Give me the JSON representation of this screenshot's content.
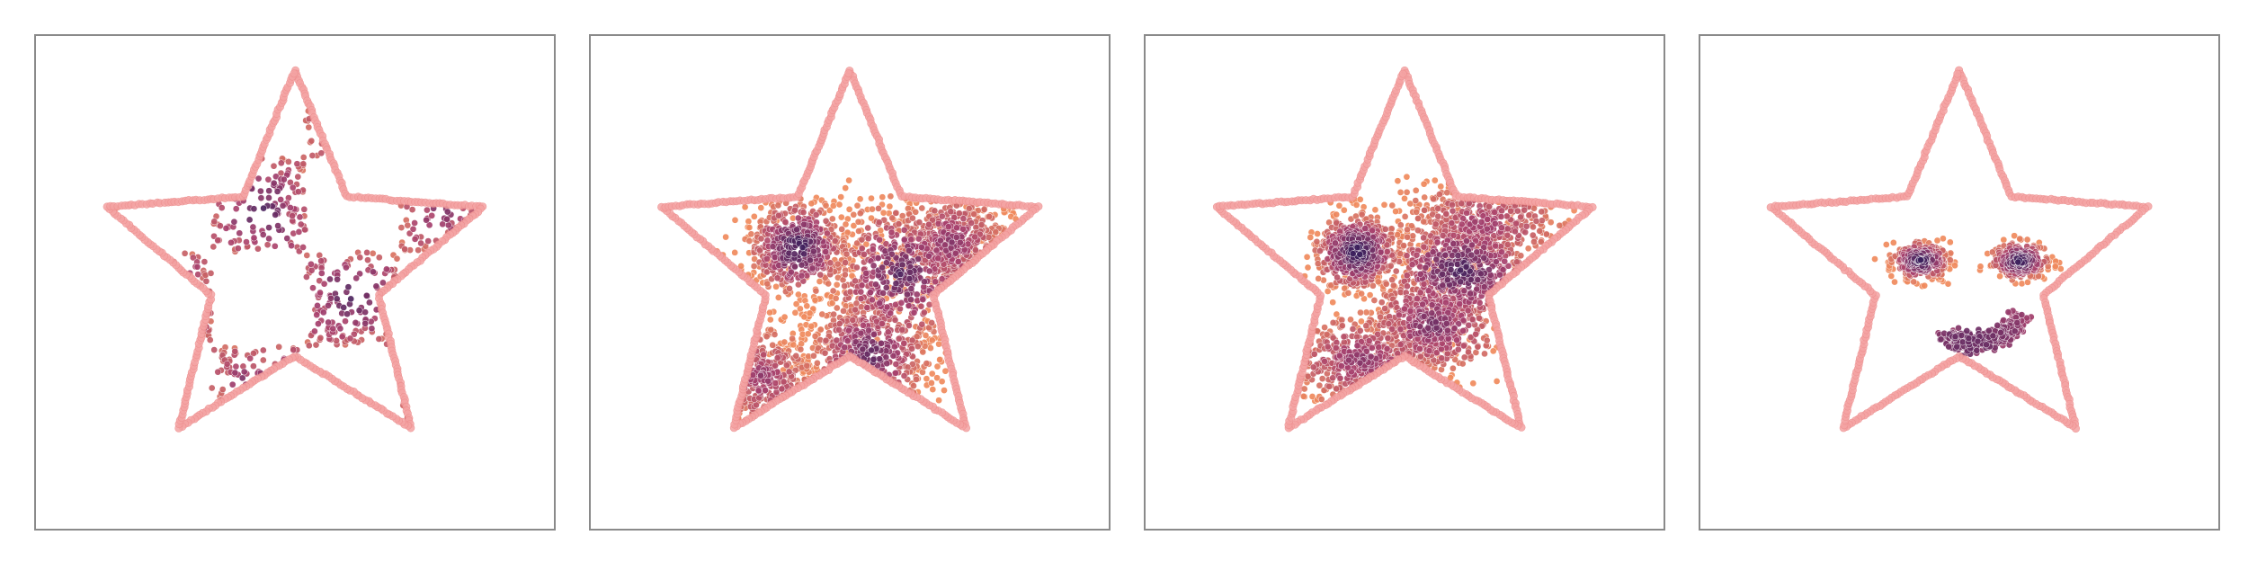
{
  "figure": {
    "panels": [
      {
        "distribution": "checkerboard"
      },
      {
        "distribution": "swirl"
      },
      {
        "distribution": "gaussian-blobs"
      },
      {
        "distribution": "smiley-face"
      }
    ],
    "colors": {
      "star_outline": "#f4a3a3",
      "star_outline_edge": "#ec8c8c",
      "density_high": "#3b1f5c",
      "density_mid": "#a8416e",
      "density_low": "#f08a5d",
      "background": "#ffffff",
      "frame": "#8a8a8a"
    }
  }
}
